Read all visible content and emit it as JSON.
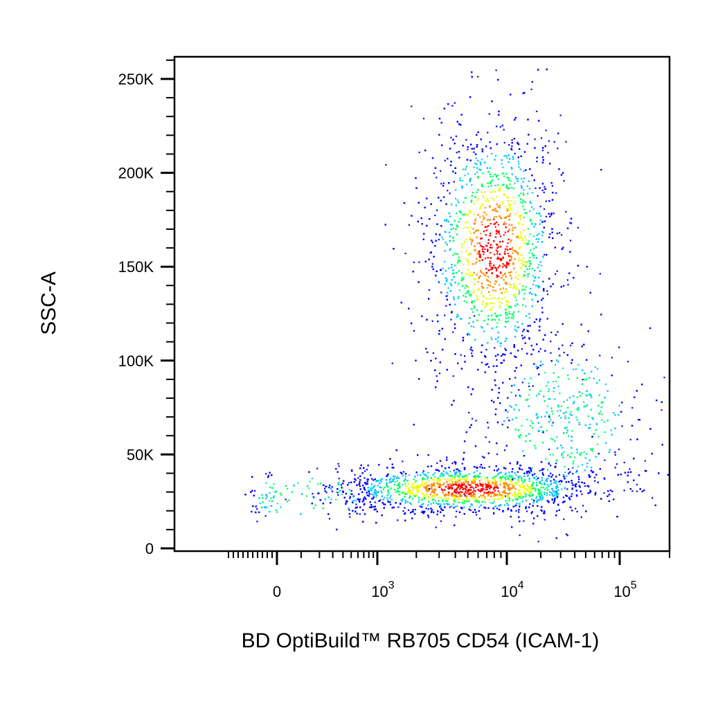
{
  "chart_data": {
    "type": "scatter",
    "subtype": "flow-cytometry-density-dot-plot",
    "title": "",
    "xlabel": "BD OptiBuild™ RB705 CD54 (ICAM-1)",
    "ylabel": "SSC-A",
    "x_scale": "biexponential",
    "y_scale": "linear",
    "xlim": [
      -2000,
      200000
    ],
    "ylim": [
      0,
      262144
    ],
    "x_ticks": [
      {
        "value": 0,
        "base": "0",
        "exp": ""
      },
      {
        "value": 1000,
        "base": "10",
        "exp": "3"
      },
      {
        "value": 10000,
        "base": "10",
        "exp": "4"
      },
      {
        "value": 100000,
        "base": "10",
        "exp": "5"
      }
    ],
    "y_ticks": [
      {
        "value": 0,
        "label": "0"
      },
      {
        "value": 50000,
        "label": "50K"
      },
      {
        "value": 100000,
        "label": "100K"
      },
      {
        "value": 150000,
        "label": "150K"
      },
      {
        "value": 200000,
        "label": "200K"
      },
      {
        "value": 250000,
        "label": "250K"
      }
    ],
    "density_colors": [
      "#0000ff",
      "#00c8ff",
      "#00ff66",
      "#e8ff00",
      "#ff8c00",
      "#ff0000"
    ],
    "populations": [
      {
        "x_center": 8000,
        "y_center": 160000,
        "x_spread_decades": 0.28,
        "y_spread": 35000,
        "weight": 0.4
      },
      {
        "x_center": 5000,
        "y_center": 32000,
        "x_spread_decades": 0.55,
        "y_spread": 6500,
        "weight": 0.45
      },
      {
        "x_center": 30000,
        "y_center": 70000,
        "x_spread_decades": 0.35,
        "y_spread": 22000,
        "weight": 0.12
      },
      {
        "x_center": 80,
        "y_center": 28000,
        "x_spread_decades": 0.6,
        "y_spread": 7000,
        "weight": 0.03
      }
    ],
    "grid": false,
    "legend": "none"
  }
}
